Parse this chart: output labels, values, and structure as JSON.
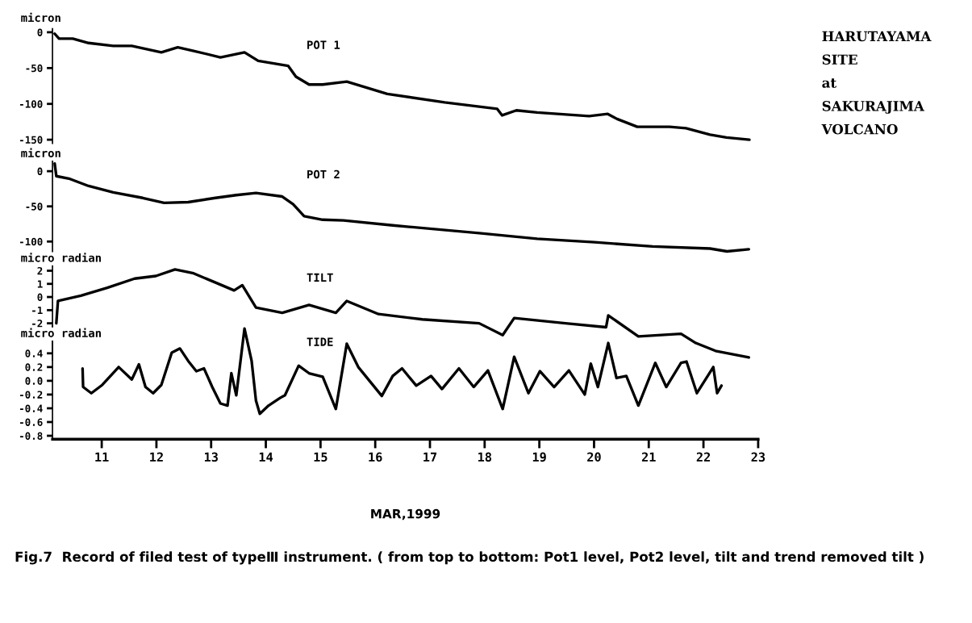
{
  "chart_data": [
    {
      "type": "line",
      "title": "POT 1",
      "ylabel": "micron",
      "color": "#000000",
      "xlim": [
        10.1,
        23
      ],
      "ylim": [
        -155,
        5
      ],
      "yticks": [
        0,
        -50,
        -100,
        -150
      ],
      "tick_labels": "y",
      "x": [
        10.14,
        10.22,
        10.47,
        10.76,
        11.21,
        11.55,
        12.09,
        12.39,
        12.68,
        13.17,
        13.61,
        13.86,
        14.41,
        14.55,
        14.79,
        15.04,
        15.48,
        16.22,
        17.27,
        18.23,
        18.32,
        18.58,
        18.96,
        19.91,
        20.25,
        20.42,
        20.79,
        21.38,
        21.68,
        22.12,
        22.42,
        22.84
      ],
      "values": [
        -2,
        -9,
        -9,
        -15,
        -19,
        -19,
        -28,
        -21,
        -26,
        -35,
        -28,
        -40,
        -47,
        -62,
        -73,
        -73,
        -69,
        -86,
        -98,
        -107,
        -116,
        -109,
        -112,
        -117,
        -114,
        -121,
        -132,
        -132,
        -134,
        -143,
        -147,
        -150
      ],
      "annotations": [
        "HARUTAYAMA\nSITE\nat\nSAKURAJIMA\nVOLCANO"
      ]
    },
    {
      "type": "line",
      "title": "POT 2",
      "ylabel": "micron",
      "color": "#000000",
      "xlim": [
        10.1,
        23
      ],
      "ylim": [
        -118,
        14
      ],
      "yticks": [
        0,
        -50,
        -100
      ],
      "tick_labels": "y",
      "x": [
        10.14,
        10.17,
        10.42,
        10.76,
        11.21,
        11.75,
        12.14,
        12.58,
        13.08,
        13.46,
        13.82,
        14.3,
        14.5,
        14.7,
        15.04,
        15.42,
        16.32,
        17.9,
        18.96,
        20.01,
        21.07,
        22.12,
        22.43,
        22.83
      ],
      "values": [
        11,
        -7,
        -11,
        -21,
        -30,
        -38,
        -45,
        -44,
        -38,
        -34,
        -31,
        -36,
        -47,
        -64,
        -69,
        -70,
        -77,
        -88,
        -96,
        -101,
        -107,
        -110,
        -114,
        -111
      ]
    },
    {
      "type": "line",
      "title": "TILT",
      "ylabel": "micro radian",
      "color": "#000000",
      "xlim": [
        10.1,
        23
      ],
      "ylim": [
        -4.8,
        2.5
      ],
      "yticks": [
        2,
        1,
        0,
        -1,
        -2
      ],
      "tick_labels": "y",
      "x": [
        10.17,
        10.2,
        10.62,
        11.1,
        11.6,
        11.99,
        12.34,
        12.68,
        13.08,
        13.42,
        13.57,
        13.82,
        14.3,
        14.79,
        15.28,
        15.48,
        16.06,
        16.86,
        17.9,
        18.33,
        18.54,
        19.48,
        20.22,
        20.26,
        20.81,
        21.59,
        21.86,
        22.22,
        22.83
      ],
      "values": [
        -2,
        -0.3,
        0.1,
        0.7,
        1.4,
        1.6,
        2.1,
        1.8,
        1.1,
        0.5,
        0.9,
        -0.8,
        -1.2,
        -0.6,
        -1.2,
        -0.3,
        -1.3,
        -1.7,
        -2,
        -2.9,
        -1.6,
        -2,
        -2.3,
        -1.4,
        -3,
        -2.8,
        -3.5,
        -4.1,
        -4.6
      ]
    },
    {
      "type": "line",
      "title": "TIDE",
      "ylabel": "micro radian",
      "xlabel": "MAR,1999",
      "color": "#000000",
      "xlim": [
        10.1,
        23
      ],
      "xticks": [
        11,
        12,
        13,
        14,
        15,
        16,
        17,
        18,
        19,
        20,
        21,
        22,
        23
      ],
      "ylim": [
        -0.85,
        0.8
      ],
      "yticks": [
        {
          "value": 0.4,
          "label": "0.4"
        },
        {
          "value": 0.2,
          "label": "0.2"
        },
        {
          "value": 0,
          "label": "0.0"
        },
        {
          "value": -0.2,
          "label": "-0.2"
        },
        {
          "value": -0.4,
          "label": "-0.4"
        },
        {
          "value": -0.6,
          "label": "-0.6"
        },
        {
          "value": -0.8,
          "label": "-0.8"
        }
      ],
      "x": [
        10.65,
        10.66,
        10.81,
        11.01,
        11.31,
        11.55,
        11.68,
        11.8,
        11.94,
        12.09,
        12.28,
        12.43,
        12.58,
        12.73,
        12.87,
        13.02,
        13.17,
        13.3,
        13.37,
        13.46,
        13.61,
        13.74,
        13.82,
        13.89,
        14.05,
        14.26,
        14.35,
        14.6,
        14.79,
        15.04,
        15.28,
        15.48,
        15.69,
        16.12,
        16.32,
        16.49,
        16.75,
        17.02,
        17.22,
        17.53,
        17.8,
        18.06,
        18.33,
        18.54,
        18.8,
        19.01,
        19.27,
        19.54,
        19.83,
        19.94,
        20.07,
        20.26,
        20.41,
        20.59,
        20.81,
        21.12,
        21.32,
        21.59,
        21.69,
        21.88,
        22.18,
        22.25,
        22.33
      ],
      "values": [
        0.18,
        -0.09,
        -0.18,
        -0.06,
        0.2,
        0.02,
        0.24,
        -0.09,
        -0.18,
        -0.06,
        0.41,
        0.47,
        0.29,
        0.14,
        0.18,
        -0.09,
        -0.33,
        -0.36,
        0.11,
        -0.21,
        0.76,
        0.29,
        -0.29,
        -0.48,
        -0.36,
        -0.25,
        -0.21,
        0.22,
        0.11,
        0.06,
        -0.41,
        0.54,
        0.2,
        -0.22,
        0.07,
        0.18,
        -0.07,
        0.07,
        -0.12,
        0.18,
        -0.09,
        0.15,
        -0.41,
        0.35,
        -0.18,
        0.14,
        -0.09,
        0.15,
        -0.2,
        0.25,
        -0.09,
        0.55,
        0.04,
        0.07,
        -0.36,
        0.26,
        -0.09,
        0.26,
        0.28,
        -0.18,
        0.2,
        -0.18,
        -0.07
      ],
      "annotations": [
        "Fig.7  Record of filed test of typeⅢ instrument. ( from top to bottom: Pot1 level, Pot2 level, tilt and trend removed tilt )"
      ]
    }
  ]
}
